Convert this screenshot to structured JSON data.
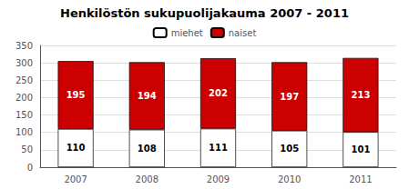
{
  "chart_data": {
    "type": "bar",
    "title": "Henkilöstön sukupuolijakauma 2007 - 2011",
    "categories": [
      "2007",
      "2008",
      "2009",
      "2010",
      "2011"
    ],
    "series": [
      {
        "name": "miehet",
        "color": "#ffffff",
        "values": [
          110,
          108,
          111,
          105,
          101
        ]
      },
      {
        "name": "naiset",
        "color": "#cc0000",
        "values": [
          195,
          194,
          202,
          197,
          213
        ]
      }
    ],
    "stacked": true,
    "data_labels": true,
    "ylim": [
      0,
      350
    ],
    "yticks": [
      0,
      50,
      100,
      150,
      200,
      250,
      300,
      350
    ],
    "grid": true,
    "legend": "top"
  }
}
